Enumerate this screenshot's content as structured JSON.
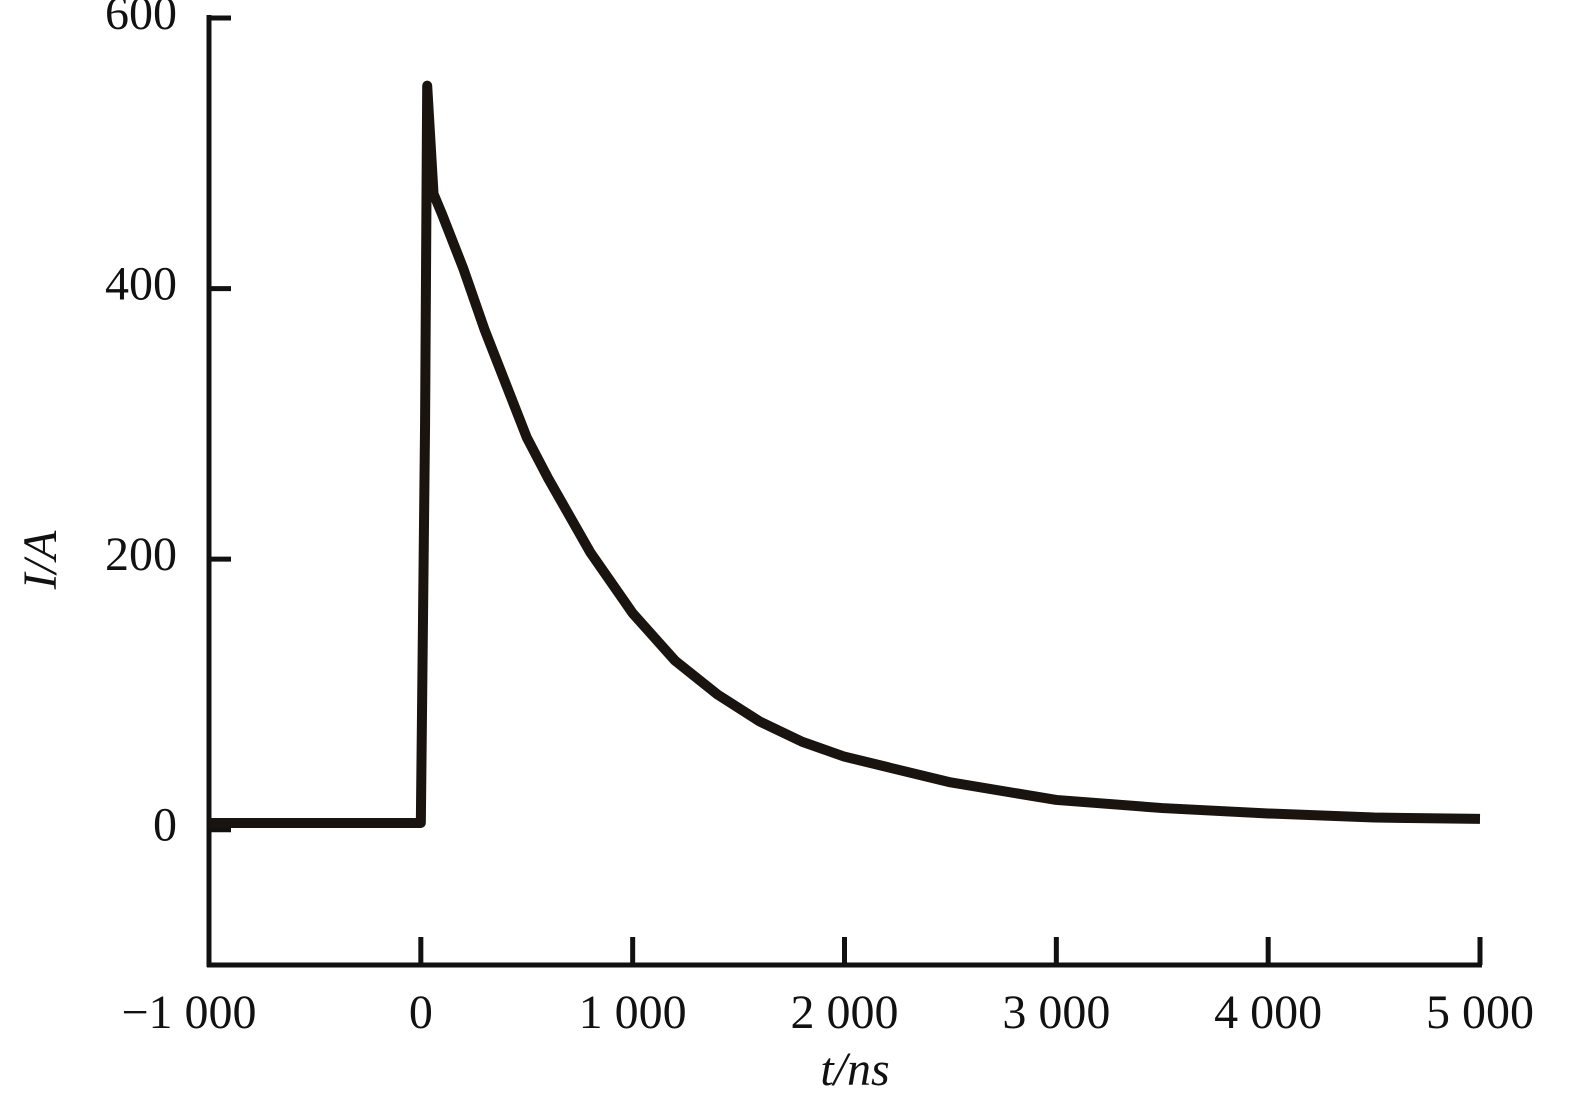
{
  "chart_data": {
    "type": "line",
    "x_label": "t/ns",
    "y_label": "I/A",
    "x": [
      -1000,
      -500,
      -100,
      0,
      20,
      30,
      60,
      100,
      200,
      300,
      400,
      500,
      600,
      800,
      1000,
      1200,
      1400,
      1600,
      1800,
      2000,
      2500,
      3000,
      3500,
      4000,
      4500,
      5000
    ],
    "series": [
      {
        "color": "#1a1410",
        "values": [
          5,
          5,
          5,
          5,
          300,
          550,
          470,
          455,
          415,
          370,
          330,
          290,
          260,
          205,
          160,
          125,
          100,
          80,
          65,
          54,
          35,
          22,
          16,
          12,
          9,
          8
        ]
      }
    ],
    "xlim": [
      -1000,
      5000
    ],
    "xticks": [
      {
        "value": -1000,
        "label": "−1 000"
      },
      0,
      {
        "value": 1000,
        "label": "1 000"
      },
      {
        "value": 2000,
        "label": "2 000"
      },
      {
        "value": 3000,
        "label": "3 000"
      },
      {
        "value": 4000,
        "label": "4 000"
      },
      {
        "value": 5000,
        "label": "5 000"
      }
    ],
    "ylim": [
      -100,
      600
    ],
    "yticks": [
      0,
      200,
      400,
      600
    ]
  }
}
